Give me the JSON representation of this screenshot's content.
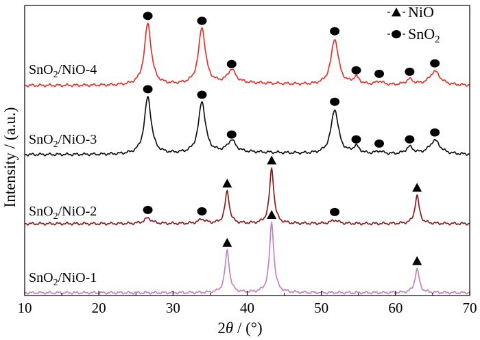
{
  "chart_data": {
    "type": "line",
    "xlabel": "2θ / (°)",
    "xlabel_parts": {
      "prefix": "2",
      "var": "θ",
      "suffix": " / (°)"
    },
    "ylabel": "Intensity / (a.u.)",
    "xlim": [
      10,
      70
    ],
    "xticks": [
      10,
      20,
      30,
      40,
      50,
      60,
      70
    ],
    "legend": {
      "position": "top-right",
      "entries": [
        {
          "marker": "triangle",
          "name": "NiO",
          "base": "NiO",
          "sub": ""
        },
        {
          "marker": "circle",
          "name": "SnO2",
          "base": "SnO",
          "sub": "2"
        }
      ]
    },
    "series": [
      {
        "name": "SnO2/NiO-4",
        "label_base": "SnO",
        "label_sub": "2",
        "label_rest": "/NiO-4",
        "color": "#e8312b",
        "stack_offset": 3,
        "peaks": [
          {
            "x": 26.6,
            "h": 0.88,
            "w": 0.55,
            "m": "circle"
          },
          {
            "x": 33.9,
            "h": 0.81,
            "w": 0.55,
            "m": "circle"
          },
          {
            "x": 37.9,
            "h": 0.19,
            "w": 0.65,
            "m": "circle"
          },
          {
            "x": 51.8,
            "h": 0.66,
            "w": 0.6,
            "m": "circle"
          },
          {
            "x": 54.7,
            "h": 0.1,
            "w": 0.55,
            "m": "circle"
          },
          {
            "x": 57.8,
            "h": 0.05,
            "w": 0.6,
            "m": "circle"
          },
          {
            "x": 61.9,
            "h": 0.08,
            "w": 0.6,
            "m": "circle"
          },
          {
            "x": 65.3,
            "h": 0.2,
            "w": 0.85,
            "m": "circle"
          }
        ]
      },
      {
        "name": "SnO2/NiO-3",
        "label_base": "SnO",
        "label_sub": "2",
        "label_rest": "/NiO-3",
        "color": "#111111",
        "stack_offset": 2,
        "peaks": [
          {
            "x": 26.6,
            "h": 0.82,
            "w": 0.55,
            "m": "circle"
          },
          {
            "x": 33.9,
            "h": 0.74,
            "w": 0.55,
            "m": "circle"
          },
          {
            "x": 37.9,
            "h": 0.17,
            "w": 0.65,
            "m": "circle"
          },
          {
            "x": 51.8,
            "h": 0.64,
            "w": 0.6,
            "m": "circle"
          },
          {
            "x": 54.7,
            "h": 0.1,
            "w": 0.55,
            "m": "circle"
          },
          {
            "x": 57.8,
            "h": 0.04,
            "w": 0.6,
            "m": "circle"
          },
          {
            "x": 61.9,
            "h": 0.1,
            "w": 0.6,
            "m": "circle"
          },
          {
            "x": 65.3,
            "h": 0.2,
            "w": 0.85,
            "m": "circle"
          }
        ]
      },
      {
        "name": "SnO2/NiO-2",
        "label_base": "SnO",
        "label_sub": "2",
        "label_rest": "/NiO-2",
        "color": "#8a1a1a",
        "stack_offset": 1,
        "peaks": [
          {
            "x": 26.6,
            "h": 0.08,
            "w": 0.6,
            "m": "circle"
          },
          {
            "x": 33.9,
            "h": 0.06,
            "w": 0.6,
            "m": "circle"
          },
          {
            "x": 37.3,
            "h": 0.46,
            "w": 0.35,
            "m": "triangle"
          },
          {
            "x": 43.3,
            "h": 0.79,
            "w": 0.35,
            "m": "triangle"
          },
          {
            "x": 51.8,
            "h": 0.05,
            "w": 0.6,
            "m": "circle"
          },
          {
            "x": 62.9,
            "h": 0.4,
            "w": 0.35,
            "m": "triangle"
          }
        ]
      },
      {
        "name": "SnO2/NiO-1",
        "label_base": "SnO",
        "label_sub": "2",
        "label_rest": "/NiO-1",
        "color": "#c481c0",
        "stack_offset": 0,
        "peaks": [
          {
            "x": 37.3,
            "h": 0.6,
            "w": 0.35,
            "m": "triangle"
          },
          {
            "x": 43.3,
            "h": 1.0,
            "w": 0.35,
            "m": "triangle"
          },
          {
            "x": 62.9,
            "h": 0.34,
            "w": 0.35,
            "m": "triangle"
          }
        ]
      }
    ]
  }
}
